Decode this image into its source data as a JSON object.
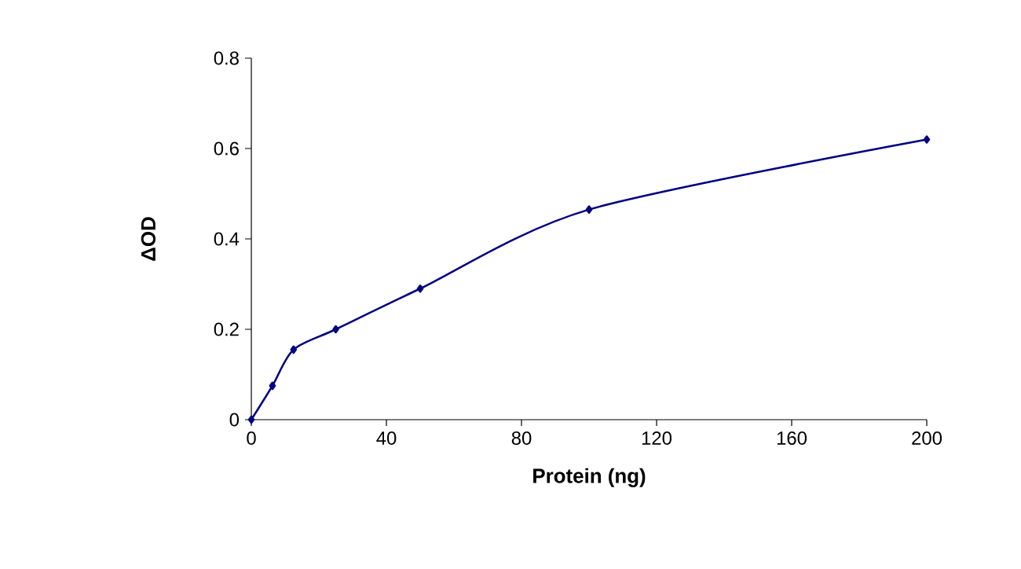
{
  "chart_data": {
    "type": "line",
    "xlabel": "Protein (ng)",
    "ylabel": "ΔOD",
    "x": [
      0,
      6.25,
      12.5,
      25,
      50,
      100,
      200
    ],
    "series": [
      {
        "color": "#000080",
        "values": [
          0,
          0.075,
          0.155,
          0.2,
          0.29,
          0.465,
          0.62
        ]
      }
    ],
    "xlim": [
      0,
      200
    ],
    "ylim": [
      0,
      0.8
    ],
    "xticks": [
      0,
      40,
      80,
      120,
      160,
      200
    ],
    "yticks": [
      0,
      0.2,
      0.4,
      0.6,
      0.8
    ],
    "marker": "diamond",
    "line_style": "solid"
  }
}
